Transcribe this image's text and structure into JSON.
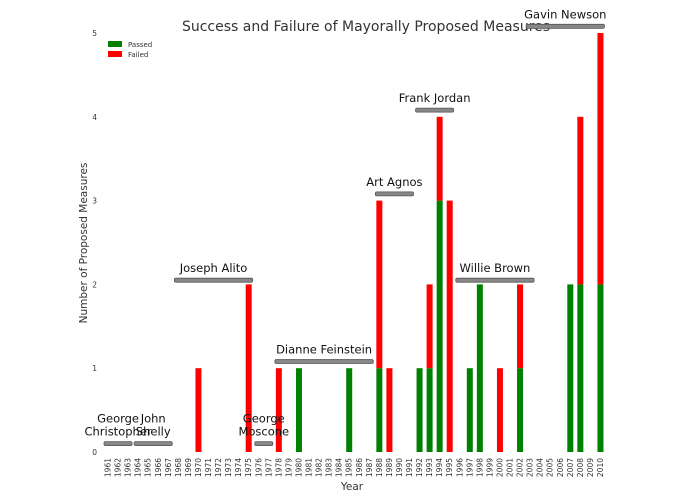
{
  "chart_data": {
    "type": "bar",
    "stacked": true,
    "title": "Success and Failure of Mayorally Proposed Measures",
    "xlabel": "Year",
    "ylabel": "Number of Proposed Measures",
    "ylim": [
      0,
      5
    ],
    "yticks": [
      0,
      1,
      2,
      3,
      4,
      5
    ],
    "grid": false,
    "legend_position": "top-left",
    "categories": [
      "1961",
      "1962",
      "1963",
      "1964",
      "1965",
      "1966",
      "1967",
      "1968",
      "1969",
      "1970",
      "1971",
      "1972",
      "1973",
      "1974",
      "1975",
      "1976",
      "1977",
      "1978",
      "1979",
      "1980",
      "1981",
      "1982",
      "1983",
      "1984",
      "1985",
      "1986",
      "1987",
      "1988",
      "1989",
      "1990",
      "1991",
      "1992",
      "1993",
      "1994",
      "1995",
      "1996",
      "1997",
      "1998",
      "1999",
      "2000",
      "2001",
      "2002",
      "2003",
      "2004",
      "2005",
      "2006",
      "2007",
      "2008",
      "2009",
      "2010"
    ],
    "series": [
      {
        "name": "Passed",
        "color": "#008000",
        "values": [
          0,
          0,
          0,
          0,
          0,
          0,
          0,
          0,
          0,
          0,
          0,
          0,
          0,
          0,
          0,
          0,
          0,
          0,
          0,
          1,
          0,
          0,
          0,
          0,
          1,
          0,
          0,
          1,
          0,
          0,
          0,
          1,
          1,
          3,
          0,
          0,
          1,
          2,
          0,
          0,
          0,
          1,
          0,
          0,
          0,
          0,
          2,
          2,
          0,
          2
        ]
      },
      {
        "name": "Failed",
        "color": "#ff0000",
        "values": [
          0,
          0,
          0,
          0,
          0,
          0,
          0,
          0,
          0,
          1,
          0,
          0,
          0,
          0,
          2,
          0,
          0,
          1,
          0,
          0,
          0,
          0,
          0,
          0,
          0,
          0,
          0,
          2,
          1,
          0,
          0,
          0,
          1,
          1,
          3,
          0,
          0,
          0,
          0,
          1,
          0,
          1,
          0,
          0,
          0,
          0,
          0,
          2,
          0,
          3
        ]
      }
    ],
    "mayors": [
      {
        "name": "George\nChristopher",
        "start": "1961",
        "end": "1963",
        "level": 0.1
      },
      {
        "name": "John\nShelly",
        "start": "1964",
        "end": "1967",
        "level": 0.1
      },
      {
        "name": "Joseph Alito",
        "start": "1968",
        "end": "1975",
        "level": 2.05
      },
      {
        "name": "George\nMoscone",
        "start": "1976",
        "end": "1977",
        "level": 0.1
      },
      {
        "name": "Dianne Feinstein",
        "start": "1978",
        "end": "1987",
        "level": 1.08
      },
      {
        "name": "Art Agnos",
        "start": "1988",
        "end": "1991",
        "level": 3.08
      },
      {
        "name": "Frank Jordan",
        "start": "1992",
        "end": "1995",
        "level": 4.08
      },
      {
        "name": "Willie Brown",
        "start": "1996",
        "end": "2003",
        "level": 2.05
      },
      {
        "name": "Gavin Newson",
        "start": "2003",
        "end": "2010",
        "level": 5.08
      }
    ]
  }
}
